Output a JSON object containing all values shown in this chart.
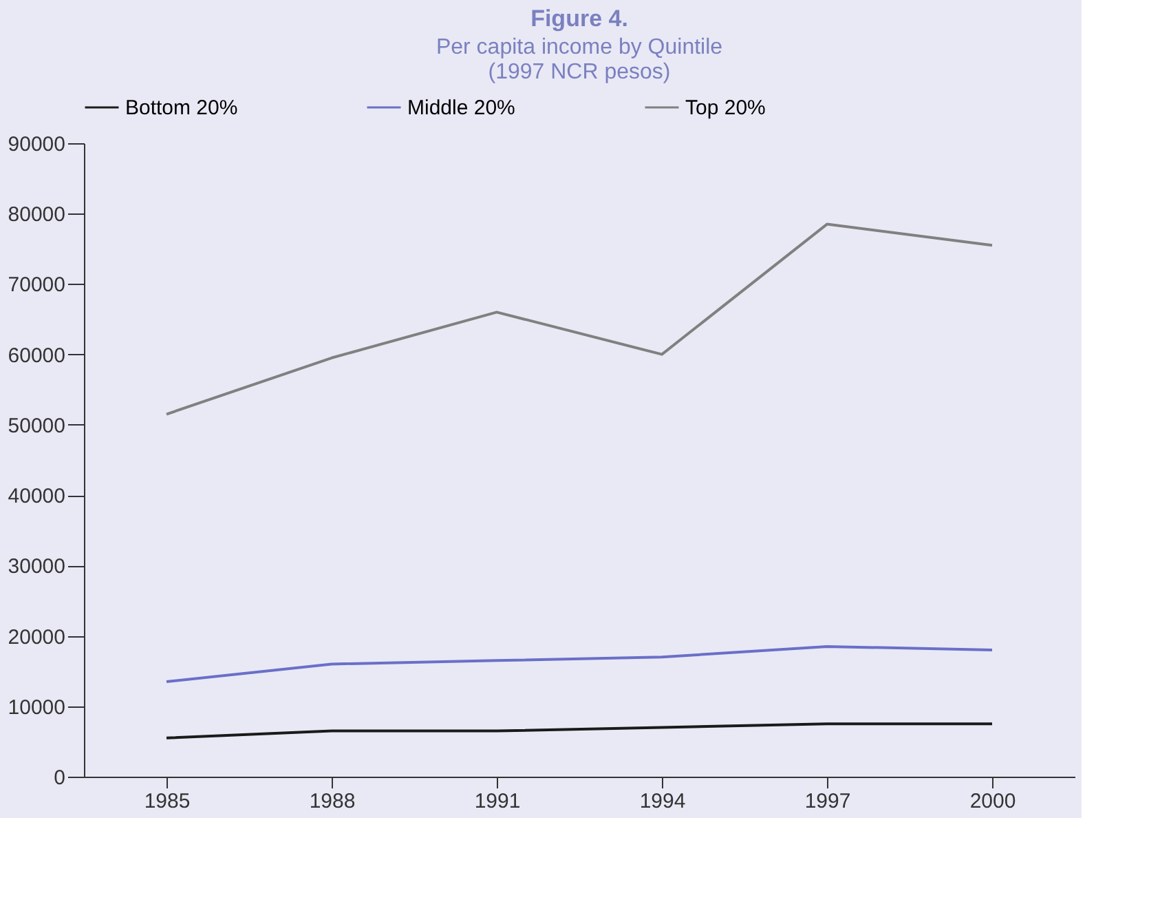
{
  "chart_data": {
    "type": "line",
    "title": "Figure 4.",
    "subtitle": "Per capita income by Quintile\n(1997 NCR pesos)",
    "categories": [
      "1985",
      "1988",
      "1991",
      "1994",
      "1997",
      "2000"
    ],
    "series": [
      {
        "name": "Bottom 20%",
        "color": "#1a1a1a",
        "values": [
          5500,
          6500,
          6500,
          7000,
          7500,
          7500
        ]
      },
      {
        "name": "Middle 20%",
        "color": "#6a6fc8",
        "values": [
          13500,
          16000,
          16500,
          17000,
          18500,
          18000
        ]
      },
      {
        "name": "Top 20%",
        "color": "#808080",
        "values": [
          51500,
          59500,
          66000,
          60000,
          78500,
          75500
        ]
      }
    ],
    "ylim": [
      0,
      90000
    ],
    "yticks": [
      0,
      10000,
      20000,
      30000,
      40000,
      50000,
      60000,
      70000,
      80000,
      90000
    ],
    "grid": false,
    "legend": "top",
    "marker": "none",
    "line_style": "solid"
  }
}
